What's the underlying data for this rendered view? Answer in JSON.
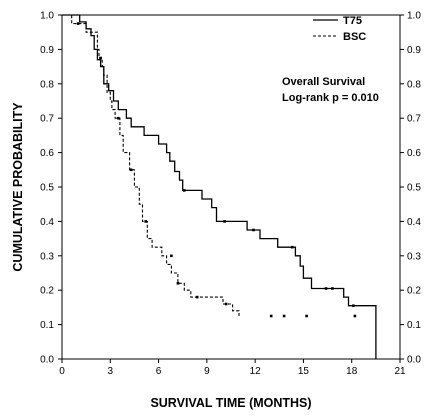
{
  "chart_data": {
    "type": "line",
    "title": "",
    "xlabel": "SURVIVAL TIME (MONTHS)",
    "ylabel": "CUMULATIVE PROBABILITY",
    "xlim": [
      0,
      21
    ],
    "ylim": [
      0,
      1.0
    ],
    "x_ticks": [
      "0",
      "3",
      "6",
      "9",
      "12",
      "15",
      "18",
      "21"
    ],
    "y_ticks": [
      "0.0",
      "0.1",
      "0.2",
      "0.3",
      "0.4",
      "0.5",
      "0.6",
      "0.7",
      "0.8",
      "0.9",
      "1.0"
    ],
    "right_axis_ticks": true,
    "grid": false,
    "legend_position": "top-right",
    "annotations": [
      "Overall Survival",
      "Log-rank  p = 0.010"
    ],
    "series": [
      {
        "name": "T75",
        "line_style": "solid",
        "color": "#000000",
        "steps": [
          [
            0,
            1.0
          ],
          [
            1.1,
            1.0
          ],
          [
            1.1,
            0.98
          ],
          [
            1.5,
            0.98
          ],
          [
            1.5,
            0.96
          ],
          [
            1.8,
            0.96
          ],
          [
            1.8,
            0.94
          ],
          [
            2.0,
            0.94
          ],
          [
            2.0,
            0.9
          ],
          [
            2.2,
            0.9
          ],
          [
            2.2,
            0.87
          ],
          [
            2.4,
            0.87
          ],
          [
            2.4,
            0.85
          ],
          [
            2.6,
            0.85
          ],
          [
            2.6,
            0.8
          ],
          [
            2.9,
            0.8
          ],
          [
            2.9,
            0.78
          ],
          [
            3.2,
            0.78
          ],
          [
            3.2,
            0.75
          ],
          [
            3.5,
            0.75
          ],
          [
            3.5,
            0.725
          ],
          [
            4.0,
            0.725
          ],
          [
            4.0,
            0.7
          ],
          [
            4.3,
            0.7
          ],
          [
            4.3,
            0.675
          ],
          [
            5.1,
            0.675
          ],
          [
            5.1,
            0.65
          ],
          [
            6.0,
            0.65
          ],
          [
            6.0,
            0.625
          ],
          [
            6.5,
            0.625
          ],
          [
            6.5,
            0.6
          ],
          [
            6.7,
            0.6
          ],
          [
            6.7,
            0.575
          ],
          [
            7.0,
            0.575
          ],
          [
            7.0,
            0.545
          ],
          [
            7.3,
            0.545
          ],
          [
            7.3,
            0.52
          ],
          [
            7.5,
            0.52
          ],
          [
            7.5,
            0.49
          ],
          [
            8.7,
            0.49
          ],
          [
            8.7,
            0.465
          ],
          [
            9.3,
            0.465
          ],
          [
            9.3,
            0.44
          ],
          [
            9.6,
            0.44
          ],
          [
            9.6,
            0.4
          ],
          [
            11.5,
            0.4
          ],
          [
            11.5,
            0.375
          ],
          [
            12.3,
            0.375
          ],
          [
            12.3,
            0.35
          ],
          [
            13.4,
            0.35
          ],
          [
            13.4,
            0.325
          ],
          [
            14.5,
            0.325
          ],
          [
            14.5,
            0.3
          ],
          [
            14.8,
            0.3
          ],
          [
            14.8,
            0.27
          ],
          [
            15.0,
            0.27
          ],
          [
            15.0,
            0.235
          ],
          [
            15.5,
            0.235
          ],
          [
            15.5,
            0.205
          ],
          [
            17.5,
            0.205
          ],
          [
            17.5,
            0.18
          ],
          [
            17.8,
            0.18
          ],
          [
            17.8,
            0.155
          ],
          [
            19.5,
            0.155
          ],
          [
            19.5,
            0.0
          ]
        ],
        "censored": [
          [
            7.6,
            0.49
          ],
          [
            10.1,
            0.4
          ],
          [
            11.9,
            0.375
          ],
          [
            14.3,
            0.325
          ],
          [
            16.4,
            0.205
          ],
          [
            16.8,
            0.205
          ],
          [
            18.1,
            0.155
          ]
        ]
      },
      {
        "name": "BSC",
        "line_style": "dashed",
        "color": "#000000",
        "steps": [
          [
            0,
            1.0
          ],
          [
            0.6,
            1.0
          ],
          [
            0.6,
            0.975
          ],
          [
            1.5,
            0.975
          ],
          [
            1.5,
            0.95
          ],
          [
            2.2,
            0.95
          ],
          [
            2.2,
            0.9
          ],
          [
            2.3,
            0.9
          ],
          [
            2.3,
            0.875
          ],
          [
            2.5,
            0.875
          ],
          [
            2.5,
            0.85
          ],
          [
            2.6,
            0.85
          ],
          [
            2.6,
            0.825
          ],
          [
            2.8,
            0.825
          ],
          [
            2.8,
            0.775
          ],
          [
            3.0,
            0.775
          ],
          [
            3.0,
            0.75
          ],
          [
            3.1,
            0.75
          ],
          [
            3.1,
            0.725
          ],
          [
            3.3,
            0.725
          ],
          [
            3.3,
            0.7
          ],
          [
            3.6,
            0.7
          ],
          [
            3.6,
            0.65
          ],
          [
            3.8,
            0.65
          ],
          [
            3.8,
            0.6
          ],
          [
            4.2,
            0.6
          ],
          [
            4.2,
            0.55
          ],
          [
            4.5,
            0.55
          ],
          [
            4.5,
            0.5
          ],
          [
            4.8,
            0.5
          ],
          [
            4.8,
            0.45
          ],
          [
            5.0,
            0.45
          ],
          [
            5.0,
            0.4
          ],
          [
            5.3,
            0.4
          ],
          [
            5.3,
            0.35
          ],
          [
            5.6,
            0.35
          ],
          [
            5.6,
            0.325
          ],
          [
            6.2,
            0.325
          ],
          [
            6.2,
            0.3
          ],
          [
            6.5,
            0.3
          ],
          [
            6.5,
            0.275
          ],
          [
            6.8,
            0.275
          ],
          [
            6.8,
            0.25
          ],
          [
            7.2,
            0.25
          ],
          [
            7.2,
            0.22
          ],
          [
            7.6,
            0.22
          ],
          [
            7.6,
            0.2
          ],
          [
            8.0,
            0.2
          ],
          [
            8.0,
            0.18
          ],
          [
            10.0,
            0.18
          ],
          [
            10.0,
            0.16
          ],
          [
            10.6,
            0.16
          ],
          [
            10.6,
            0.14
          ],
          [
            11.0,
            0.14
          ],
          [
            11.0,
            0.125
          ]
        ],
        "censored": [
          [
            1.0,
            0.975
          ],
          [
            2.4,
            0.875
          ],
          [
            3.5,
            0.7
          ],
          [
            4.3,
            0.55
          ],
          [
            5.2,
            0.4
          ],
          [
            6.8,
            0.3
          ],
          [
            7.2,
            0.22
          ],
          [
            8.4,
            0.18
          ],
          [
            10.2,
            0.16
          ],
          [
            13.0,
            0.125
          ],
          [
            13.8,
            0.125
          ],
          [
            15.2,
            0.125
          ],
          [
            18.2,
            0.125
          ]
        ]
      }
    ]
  }
}
